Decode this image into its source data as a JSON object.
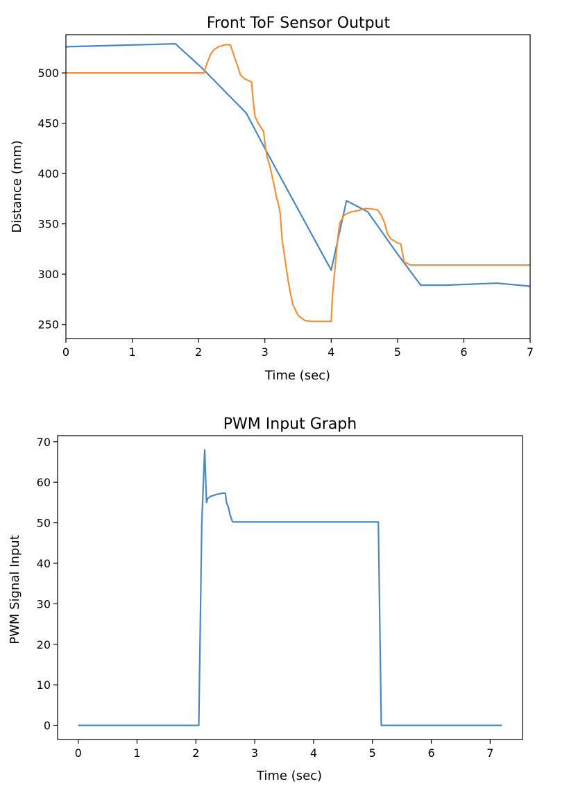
{
  "chart_data": [
    {
      "type": "line",
      "title": "Front ToF Sensor Output",
      "xlabel": "Time (sec)",
      "ylabel": "Distance (mm)",
      "xlim": [
        0,
        7
      ],
      "ylim": [
        236,
        538
      ],
      "xticks": [
        0,
        1,
        2,
        3,
        4,
        5,
        6,
        7
      ],
      "yticks": [
        250,
        300,
        350,
        400,
        450,
        500
      ],
      "grid": false,
      "series": [
        {
          "color": "#4a86c0",
          "x": [
            0,
            1.65,
            2.05,
            2.72,
            3.0,
            4.0,
            4.23,
            4.55,
            5.0,
            5.35,
            5.7,
            6.5,
            7.0
          ],
          "y": [
            526,
            529,
            505,
            460,
            425,
            304,
            373,
            362,
            320,
            289,
            289,
            291,
            288
          ]
        },
        {
          "color": "#f0913a",
          "x": [
            0,
            2.08,
            2.13,
            2.18,
            2.23,
            2.3,
            2.4,
            2.48,
            2.5,
            2.55,
            2.6,
            2.63,
            2.7,
            2.8,
            2.82,
            2.85,
            2.9,
            2.95,
            2.98,
            3.0,
            3.03,
            3.07,
            3.1,
            3.15,
            3.18,
            3.2,
            3.23,
            3.26,
            3.3,
            3.35,
            3.38,
            3.42,
            3.5,
            3.6,
            3.7,
            3.8,
            4.0,
            4.02,
            4.05,
            4.08,
            4.1,
            4.13,
            4.2,
            4.3,
            4.4,
            4.5,
            4.6,
            4.7,
            4.75,
            4.8,
            4.85,
            4.9,
            5.0,
            5.05,
            5.1,
            5.2,
            6.0,
            7.0
          ],
          "y": [
            500,
            500,
            510,
            518,
            523,
            526,
            528,
            528,
            524,
            514,
            505,
            498,
            494,
            491,
            475,
            457,
            450,
            445,
            442,
            431,
            417,
            409,
            400,
            385,
            375,
            371,
            361,
            334,
            316,
            294,
            283,
            270,
            259,
            254,
            253,
            253,
            253,
            279,
            301,
            322,
            336,
            351,
            359,
            362,
            363,
            365,
            365,
            364,
            359,
            352,
            340,
            335,
            331,
            330,
            312,
            309,
            309,
            309
          ]
        }
      ]
    },
    {
      "type": "line",
      "title": "PWM Input Graph",
      "xlabel": "Time (sec)",
      "ylabel": "PWM Signal Input",
      "xlim": [
        -0.35,
        7.55
      ],
      "ylim": [
        -3.5,
        71.5
      ],
      "xticks": [
        0,
        1,
        2,
        3,
        4,
        5,
        6,
        7
      ],
      "yticks": [
        0,
        10,
        20,
        30,
        40,
        50,
        60,
        70
      ],
      "grid": false,
      "series": [
        {
          "color": "#4a86c0",
          "x": [
            0,
            2.05,
            2.1,
            2.15,
            2.18,
            2.2,
            2.25,
            2.35,
            2.45,
            2.5,
            2.52,
            2.55,
            2.58,
            2.62,
            2.65,
            5.1,
            5.15,
            7.2
          ],
          "y": [
            0,
            0,
            50,
            68,
            55,
            56,
            56.5,
            57,
            57.3,
            57.3,
            55,
            54,
            52,
            50.3,
            50.2,
            50.2,
            0,
            0
          ]
        }
      ]
    }
  ]
}
